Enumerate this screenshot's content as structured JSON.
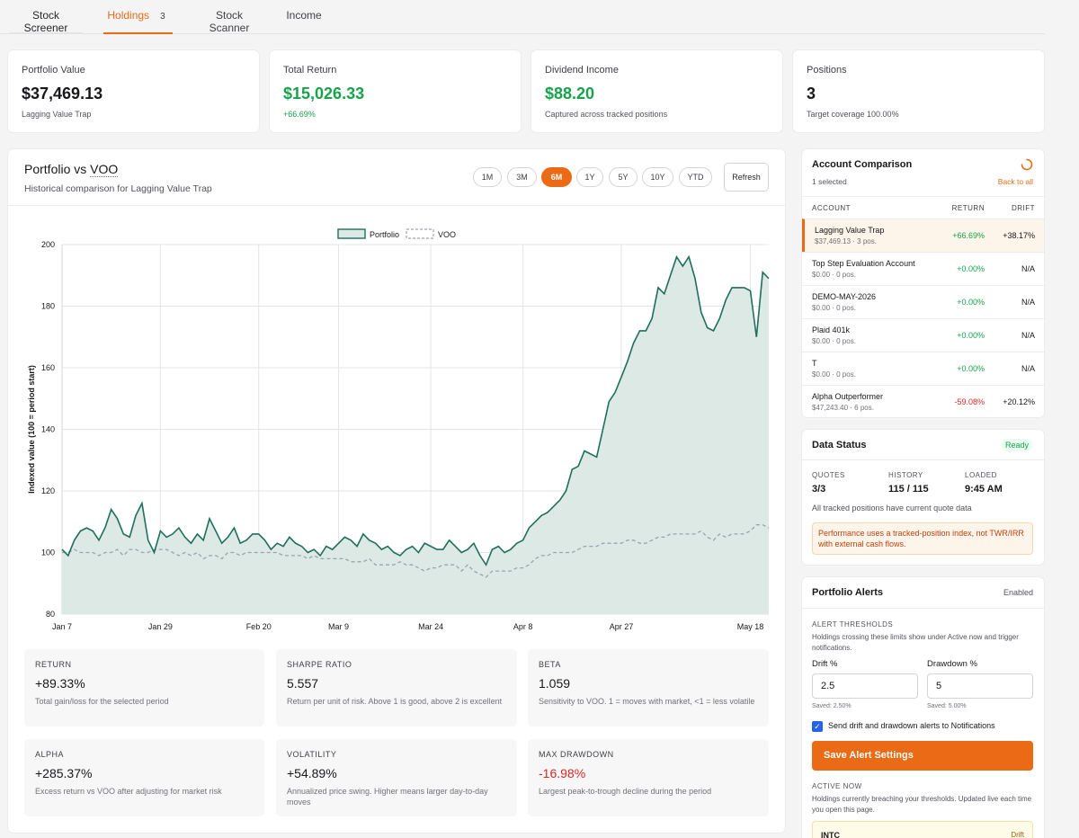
{
  "tabs": [
    {
      "label": "Stock Screener"
    },
    {
      "label": "Holdings",
      "badge": "3"
    },
    {
      "label": "Stock Scanner"
    },
    {
      "label": "Income"
    }
  ],
  "stats": [
    {
      "label": "Portfolio Value",
      "value": "$37,469.13",
      "sub": "Lagging Value Trap"
    },
    {
      "label": "Total Return",
      "value": "$15,026.33",
      "sub": "+66.69%"
    },
    {
      "label": "Dividend Income",
      "value": "$88.20",
      "sub": "Captured across tracked positions"
    },
    {
      "label": "Positions",
      "value": "3",
      "sub": "Target coverage 100.00%"
    }
  ],
  "chart_panel": {
    "title_prefix": "Portfolio vs",
    "benchmark": "VOO",
    "subtitle": "Historical comparison for Lagging Value Trap",
    "ranges": [
      "1M",
      "3M",
      "6M",
      "1Y",
      "5Y",
      "10Y",
      "YTD"
    ],
    "active_range": "6M",
    "refresh_label": "Refresh"
  },
  "chart_data": {
    "type": "area",
    "ylabel": "Indexed value (100 = period start)",
    "ylim": [
      80,
      200
    ],
    "yticks": [
      80,
      100,
      120,
      140,
      160,
      180,
      200
    ],
    "xtick_labels": [
      "Jan 7",
      "Jan 29",
      "Feb 20",
      "Mar 9",
      "Mar 24",
      "Apr 8",
      "Apr 27",
      "May 18"
    ],
    "xtick_index": [
      0,
      16,
      32,
      45,
      60,
      75,
      91,
      112
    ],
    "grid": true,
    "legend_position": "top-center",
    "series": [
      {
        "name": "Portfolio",
        "color": "#1f6f5c",
        "fill": "#dce9e5",
        "style": "solid",
        "values": [
          101,
          99,
          104,
          107,
          108,
          107,
          104,
          108,
          114,
          111,
          106,
          105,
          112,
          116,
          104,
          100,
          107,
          105,
          106,
          108,
          105,
          103,
          106,
          104,
          111,
          107,
          103,
          105,
          108,
          103,
          104,
          106,
          106,
          104,
          101,
          103,
          102,
          105,
          103,
          102,
          100,
          101,
          99,
          102,
          101,
          103,
          105,
          104,
          102,
          106,
          104,
          103,
          101,
          102,
          100,
          99,
          101,
          102,
          100,
          103,
          102,
          101,
          101,
          104,
          102,
          100,
          101,
          103,
          99,
          96,
          101,
          102,
          100,
          101,
          103,
          104,
          108,
          110,
          112,
          113,
          115,
          117,
          120,
          127,
          128,
          133,
          132,
          131,
          140,
          149,
          152,
          157,
          162,
          168,
          172,
          172,
          176,
          186,
          184,
          190,
          196,
          193,
          196,
          189,
          178,
          173,
          172,
          176,
          182,
          186,
          186,
          186,
          185,
          170,
          191,
          189
        ]
      },
      {
        "name": "VOO",
        "color": "#9ca3af",
        "style": "dashed",
        "values": [
          100,
          100,
          101,
          100,
          100,
          100,
          99,
          100,
          100,
          101,
          99,
          101,
          101,
          100,
          100,
          101,
          101,
          101,
          100,
          99,
          100,
          99,
          100,
          98,
          99,
          99,
          98,
          100,
          100,
          99,
          100,
          100,
          100,
          100,
          100,
          100,
          99,
          99,
          99,
          99,
          98,
          99,
          98,
          98,
          98,
          98,
          98,
          97,
          97,
          97,
          98,
          96,
          96,
          96,
          96,
          97,
          96,
          96,
          95,
          94,
          95,
          95,
          96,
          96,
          96,
          94,
          96,
          94,
          93,
          92,
          94,
          94,
          94,
          94,
          95,
          95,
          96,
          98,
          99,
          99,
          100,
          100,
          100,
          100,
          101,
          102,
          102,
          102,
          103,
          103,
          103,
          103,
          104,
          104,
          103,
          103,
          104,
          105,
          105,
          106,
          106,
          106,
          106,
          106,
          107,
          105,
          104,
          106,
          105,
          106,
          106,
          106,
          107,
          109,
          109,
          108
        ]
      }
    ]
  },
  "metrics": [
    {
      "label": "RETURN",
      "value": "+89.33%",
      "desc": "Total gain/loss for the selected period"
    },
    {
      "label": "SHARPE RATIO",
      "value": "5.557",
      "desc": "Return per unit of risk. Above 1 is good, above 2 is excellent"
    },
    {
      "label": "BETA",
      "value": "1.059",
      "desc": "Sensitivity to VOO. 1 = moves with market, <1 = less volatile"
    },
    {
      "label": "ALPHA",
      "value": "+285.37%",
      "desc": "Excess return vs VOO after adjusting for market risk"
    },
    {
      "label": "VOLATILITY",
      "value": "+54.89%",
      "desc": "Annualized price swing. Higher means larger day-to-day moves"
    },
    {
      "label": "MAX DRAWDOWN",
      "value": "-16.98%",
      "desc": "Largest peak-to-trough decline during the period"
    }
  ],
  "account_comparison": {
    "title": "Account Comparison",
    "selected": "1 selected",
    "back_label": "Back to all",
    "col_account": "ACCOUNT",
    "col_return": "RETURN",
    "col_drift": "DRIFT",
    "rows": [
      {
        "name": "Lagging Value Trap",
        "sub": "$37,469.13 · 3 pos.",
        "ret": "+66.69%",
        "drift": "+38.17%"
      },
      {
        "name": "Top Step Evaluation Account",
        "sub": "$0.00 · 0 pos.",
        "ret": "+0.00%",
        "drift": "N/A"
      },
      {
        "name": "DEMO-MAY-2026",
        "sub": "$0.00 · 0 pos.",
        "ret": "+0.00%",
        "drift": "N/A"
      },
      {
        "name": "Plaid 401k",
        "sub": "$0.00 · 0 pos.",
        "ret": "+0.00%",
        "drift": "N/A"
      },
      {
        "name": "T",
        "sub": "$0.00 · 0 pos.",
        "ret": "+0.00%",
        "drift": "N/A"
      },
      {
        "name": "Alpha Outperformer",
        "sub": "$47,243.40 · 6 pos.",
        "ret": "-59.08%",
        "drift": "+20.12%"
      }
    ]
  },
  "data_status": {
    "title": "Data Status",
    "badge": "Ready",
    "quotes_label": "QUOTES",
    "quotes_value": "3/3",
    "history_label": "HISTORY",
    "history_value": "115 / 115",
    "loaded_label": "LOADED",
    "loaded_value": "9:45 AM",
    "note": "All tracked positions have current quote data",
    "warning": "Performance uses a tracked-position index, not TWR/IRR with external cash flows."
  },
  "alerts": {
    "title": "Portfolio Alerts",
    "status": "Enabled",
    "thresholds_label": "ALERT THRESHOLDS",
    "thresholds_desc": "Holdings crossing these limits show under Active now and trigger notifications.",
    "drift_label": "Drift %",
    "drift_value": "2.5",
    "drift_saved": "Saved: 2.50%",
    "drawdown_label": "Drawdown %",
    "drawdown_value": "5",
    "drawdown_saved": "Saved: 5.00%",
    "checkbox_label": "Send drift and drawdown alerts to Notifications",
    "save_label": "Save Alert Settings",
    "active_label": "ACTIVE NOW",
    "active_desc": "Holdings currently breaching your thresholds. Updated live each time you open this page.",
    "active_item": "INTC",
    "active_item_tag": "Drift"
  }
}
